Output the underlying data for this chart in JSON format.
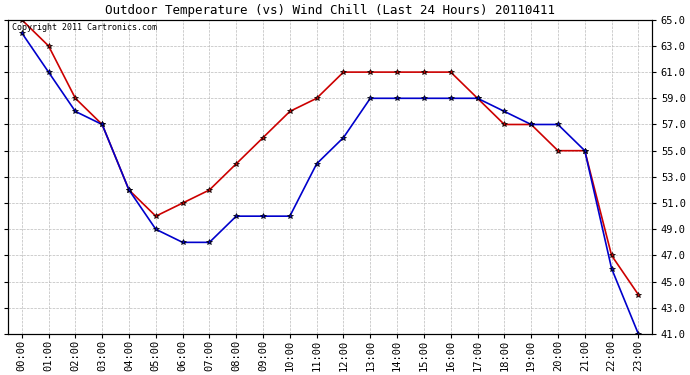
{
  "title": "Outdoor Temperature (vs) Wind Chill (Last 24 Hours) 20110411",
  "copyright_text": "Copyright 2011 Cartronics.com",
  "x_labels": [
    "00:00",
    "01:00",
    "02:00",
    "03:00",
    "04:00",
    "05:00",
    "06:00",
    "07:00",
    "08:00",
    "09:00",
    "10:00",
    "11:00",
    "12:00",
    "13:00",
    "14:00",
    "15:00",
    "16:00",
    "17:00",
    "18:00",
    "19:00",
    "20:00",
    "21:00",
    "22:00",
    "23:00"
  ],
  "temp_data": [
    65,
    63,
    59,
    57,
    52,
    50,
    51,
    52,
    54,
    56,
    58,
    59,
    61,
    61,
    61,
    61,
    61,
    59,
    57,
    57,
    55,
    55,
    47,
    44
  ],
  "windchill_data": [
    64,
    61,
    58,
    57,
    52,
    49,
    48,
    48,
    50,
    50,
    50,
    54,
    56,
    59,
    59,
    59,
    59,
    59,
    58,
    57,
    57,
    55,
    46,
    41
  ],
  "ylim_min": 41.0,
  "ylim_max": 65.0,
  "yticks": [
    41.0,
    43.0,
    45.0,
    47.0,
    49.0,
    51.0,
    53.0,
    55.0,
    57.0,
    59.0,
    61.0,
    63.0,
    65.0
  ],
  "temp_color": "#cc0000",
  "windchill_color": "#0000cc",
  "bg_color": "#ffffff",
  "grid_color": "#bbbbbb",
  "marker": "*",
  "marker_color": "#000000",
  "marker_size": 4,
  "title_fontsize": 9,
  "tick_fontsize": 7.5,
  "copyright_fontsize": 6
}
